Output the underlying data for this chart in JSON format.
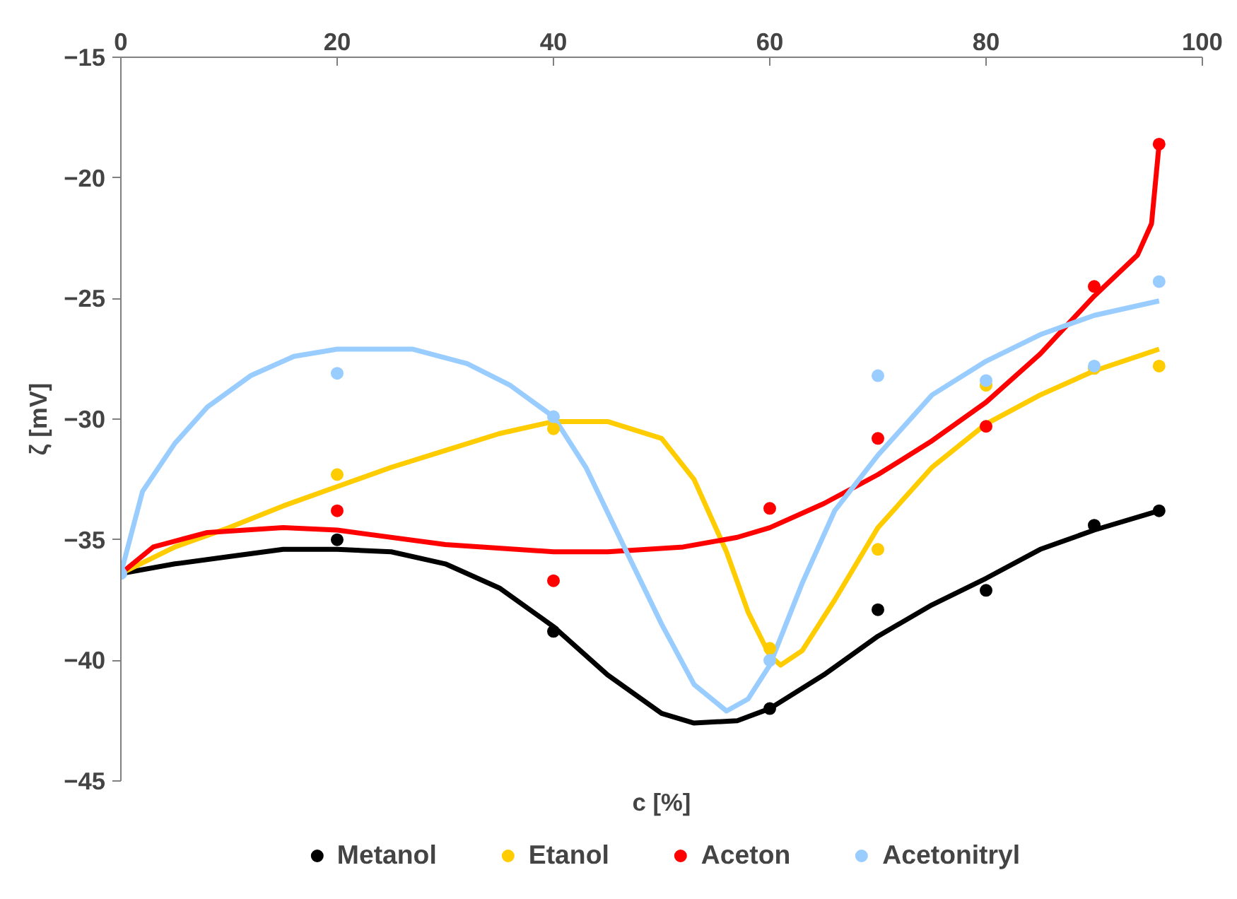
{
  "chart_data": {
    "type": "scatter",
    "xlabel": "c [%]",
    "ylabel": "ζ [mV]",
    "x": [
      0,
      20,
      40,
      60,
      70,
      80,
      90,
      96
    ],
    "xlim": [
      0,
      100
    ],
    "xticks": [
      0,
      20,
      40,
      60,
      80,
      100
    ],
    "ylim": [
      -45,
      -15
    ],
    "yticks": [
      -45,
      -40,
      -35,
      -30,
      -25,
      -20,
      -15
    ],
    "grid": false,
    "legend": "bottom",
    "series": [
      {
        "name": "Metanol",
        "color": "#000000",
        "marker": "circle",
        "values": [
          null,
          -35.0,
          -38.8,
          -42.0,
          -37.9,
          -37.1,
          -34.4,
          -33.8
        ]
      },
      {
        "name": "Etanol",
        "color": "#ffcc00",
        "marker": "circle",
        "values": [
          null,
          -32.3,
          -30.4,
          -39.5,
          -35.4,
          -28.6,
          -27.9,
          -27.8
        ]
      },
      {
        "name": "Aceton",
        "color": "#ff0000",
        "marker": "circle",
        "values": [
          null,
          -33.8,
          -36.7,
          -33.7,
          -30.8,
          -30.3,
          -24.5,
          -18.6
        ]
      },
      {
        "name": "Acetonitryl",
        "color": "#99ccff",
        "marker": "circle",
        "values": [
          -36.4,
          -28.1,
          -29.9,
          -40.0,
          -28.2,
          -28.4,
          -27.8,
          -24.3
        ]
      },
      {
        "type": "line",
        "color": "#000000",
        "x": [
          0,
          5,
          10,
          15,
          20,
          25,
          30,
          35,
          40,
          45,
          50,
          53,
          57,
          60,
          65,
          70,
          75,
          80,
          85,
          90,
          96
        ],
        "values": [
          -36.4,
          -36.0,
          -35.7,
          -35.4,
          -35.4,
          -35.5,
          -36.0,
          -37.0,
          -38.6,
          -40.6,
          -42.2,
          -42.6,
          -42.5,
          -42.0,
          -40.6,
          -39.0,
          -37.7,
          -36.6,
          -35.4,
          -34.6,
          -33.8
        ]
      },
      {
        "type": "line",
        "color": "#ffcc00",
        "x": [
          0,
          5,
          10,
          15,
          20,
          25,
          30,
          35,
          40,
          45,
          50,
          53,
          56,
          58,
          60,
          61,
          63,
          66,
          70,
          75,
          80,
          85,
          90,
          96
        ],
        "values": [
          -36.4,
          -35.3,
          -34.5,
          -33.6,
          -32.8,
          -32.0,
          -31.3,
          -30.6,
          -30.1,
          -30.1,
          -30.8,
          -32.5,
          -35.5,
          -38.0,
          -39.8,
          -40.2,
          -39.6,
          -37.5,
          -34.5,
          -32.0,
          -30.2,
          -29.0,
          -28.0,
          -27.1
        ]
      },
      {
        "type": "line",
        "color": "#ff0000",
        "x": [
          0,
          3,
          8,
          15,
          20,
          30,
          40,
          45,
          52,
          57,
          60,
          65,
          70,
          75,
          80,
          85,
          90,
          94,
          95.3,
          96
        ],
        "values": [
          -36.4,
          -35.3,
          -34.7,
          -34.5,
          -34.6,
          -35.2,
          -35.5,
          -35.5,
          -35.3,
          -34.9,
          -34.5,
          -33.5,
          -32.3,
          -30.9,
          -29.3,
          -27.3,
          -24.9,
          -23.2,
          -21.9,
          -18.6
        ]
      },
      {
        "type": "line",
        "color": "#99ccff",
        "x": [
          0,
          2,
          5,
          8,
          12,
          16,
          20,
          27,
          32,
          36,
          40,
          43,
          46,
          50,
          53,
          56,
          58,
          60,
          63,
          66,
          70,
          75,
          80,
          85,
          90,
          96
        ],
        "values": [
          -36.4,
          -33.0,
          -31.0,
          -29.5,
          -28.2,
          -27.4,
          -27.1,
          -27.1,
          -27.7,
          -28.6,
          -29.9,
          -32.0,
          -34.8,
          -38.5,
          -41.0,
          -42.1,
          -41.6,
          -40.2,
          -36.8,
          -33.8,
          -31.5,
          -29.0,
          -27.6,
          -26.5,
          -25.7,
          -25.1
        ]
      }
    ]
  }
}
